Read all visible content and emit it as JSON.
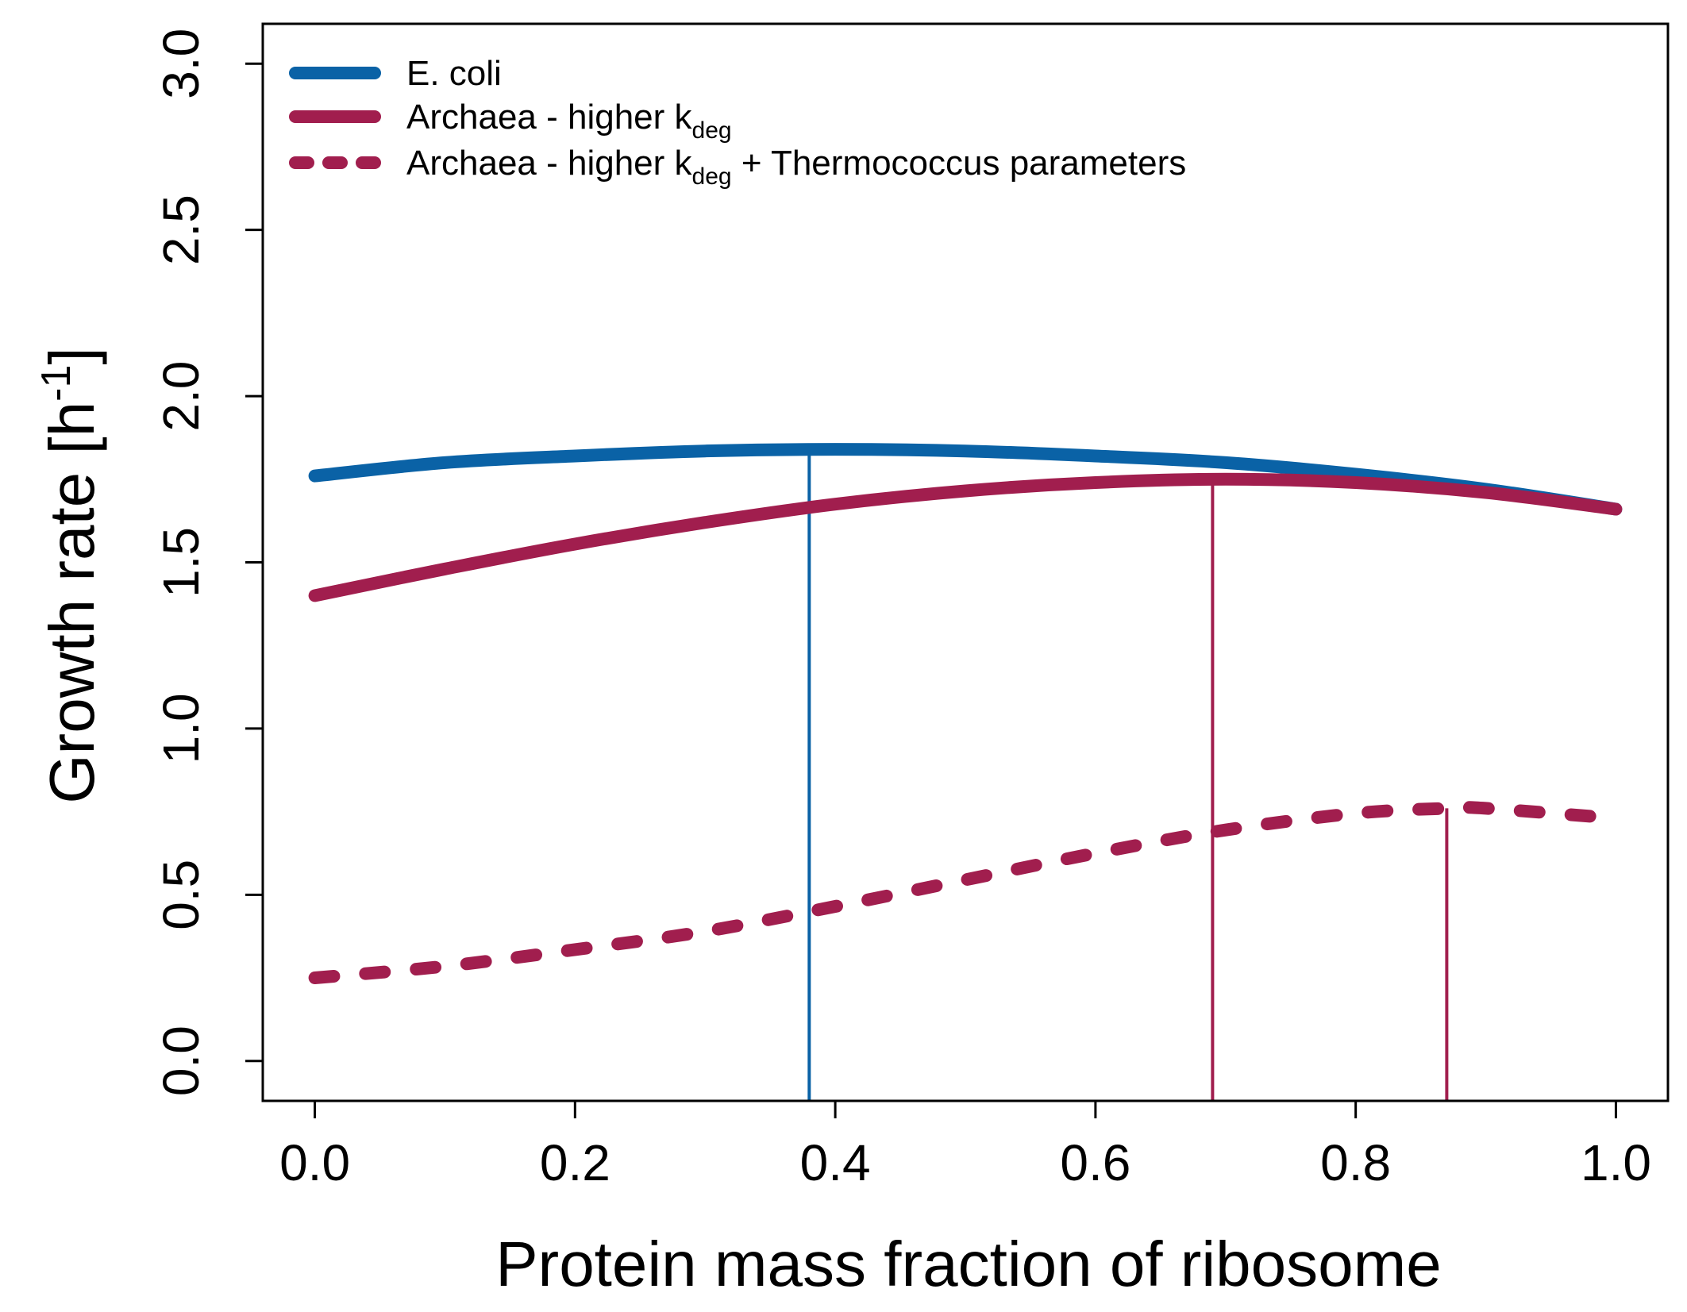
{
  "chart_data": {
    "type": "line",
    "xlabel": "Protein mass fraction of ribosome",
    "ylabel": {
      "main": "Growth rate [h",
      "superscript": "-1",
      "close": "]"
    },
    "xlim": [
      -0.04,
      1.04
    ],
    "ylim": [
      -0.12,
      3.12
    ],
    "x_ticks": [
      0.0,
      0.2,
      0.4,
      0.6,
      0.8,
      1.0
    ],
    "x_tick_labels": [
      "0.0",
      "0.2",
      "0.4",
      "0.6",
      "0.8",
      "1.0"
    ],
    "y_ticks": [
      0.0,
      0.5,
      1.0,
      1.5,
      2.0,
      2.5,
      3.0
    ],
    "y_tick_labels": [
      "0.0",
      "0.5",
      "1.0",
      "1.5",
      "2.0",
      "2.5",
      "3.0"
    ],
    "grid": false,
    "legend_position": "top-left",
    "series": [
      {
        "name": "E. coli",
        "legend": {
          "before": "E. coli",
          "sub": "",
          "after": ""
        },
        "color": "#0a62a6",
        "style": "solid",
        "x": [
          0.0,
          0.1,
          0.2,
          0.3,
          0.4,
          0.5,
          0.6,
          0.7,
          0.8,
          0.9,
          1.0
        ],
        "y": [
          1.76,
          1.8,
          1.82,
          1.835,
          1.84,
          1.835,
          1.82,
          1.8,
          1.765,
          1.72,
          1.66
        ],
        "optimum_x": 0.38
      },
      {
        "name": "Archaea - higher kdeg",
        "legend": {
          "before": "Archaea - higher k",
          "sub": "deg",
          "after": ""
        },
        "color": "#a11e4e",
        "style": "solid",
        "x": [
          0.0,
          0.1,
          0.2,
          0.3,
          0.4,
          0.5,
          0.6,
          0.7,
          0.8,
          0.9,
          1.0
        ],
        "y": [
          1.4,
          1.48,
          1.555,
          1.62,
          1.675,
          1.715,
          1.74,
          1.75,
          1.74,
          1.71,
          1.66
        ],
        "optimum_x": 0.69
      },
      {
        "name": "Archaea - higher kdeg + Thermococcus parameters",
        "legend": {
          "before": "Archaea - higher k",
          "sub": "deg",
          "after": " + Thermococcus parameters"
        },
        "color": "#a11e4e",
        "style": "dashed",
        "x": [
          0.0,
          0.1,
          0.2,
          0.3,
          0.4,
          0.5,
          0.6,
          0.7,
          0.8,
          0.87,
          0.9,
          1.0
        ],
        "y": [
          0.25,
          0.285,
          0.335,
          0.39,
          0.465,
          0.545,
          0.625,
          0.695,
          0.745,
          0.76,
          0.76,
          0.73
        ],
        "optimum_x": 0.87,
        "optimum_y": 0.76
      }
    ]
  }
}
